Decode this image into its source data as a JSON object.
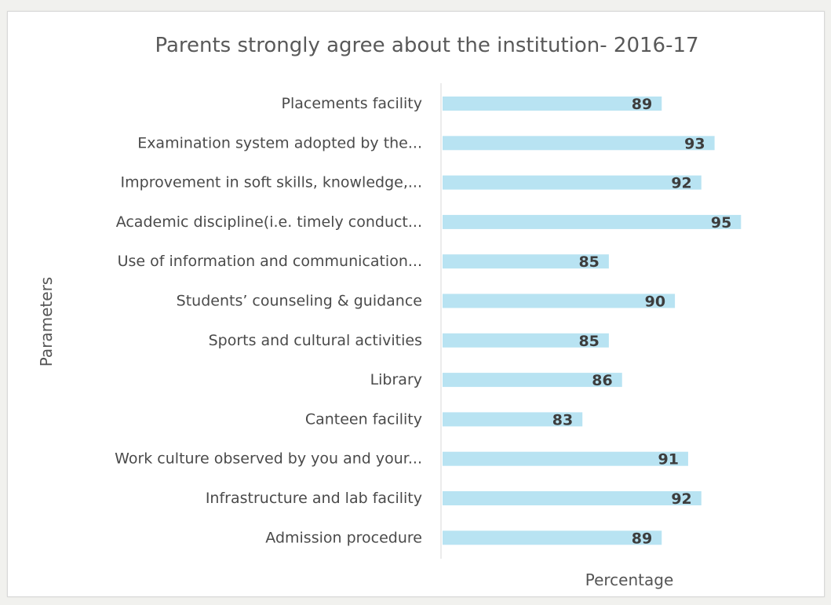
{
  "chart_data": {
    "type": "bar",
    "title": "Parents strongly agree about the institution- 2016-17",
    "xlabel": "Percentage",
    "ylabel": "Parameters",
    "categories": [
      "Placements facility",
      "Examination system adopted by the...",
      "Improvement in soft skills, knowledge,...",
      "Academic discipline(i.e. timely conduct...",
      "Use of information and communication...",
      "Students’ counseling & guidance",
      "Sports and cultural activities",
      "Library",
      "Canteen facility",
      "Work culture observed by you and your...",
      "Infrastructure and lab facility",
      "Admission procedure"
    ],
    "values": [
      89,
      93,
      92,
      95,
      85,
      90,
      85,
      86,
      83,
      91,
      92,
      89
    ],
    "colors": {
      "bar": "#b8e3f2",
      "axis_line": "#e6e6e6"
    },
    "grid": false,
    "legend": "none"
  }
}
